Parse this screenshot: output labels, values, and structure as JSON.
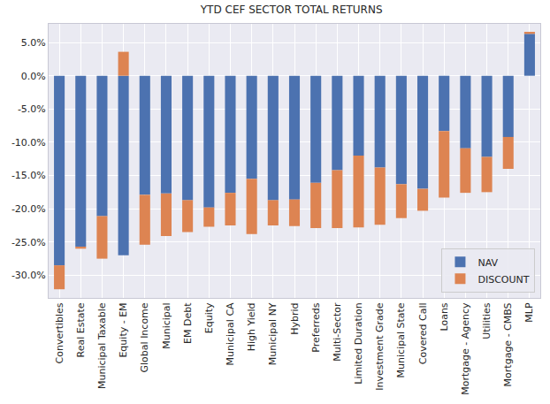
{
  "chart_data": {
    "type": "bar",
    "title": "YTD CEF SECTOR TOTAL RETURNS",
    "categories": [
      "Convertibles",
      "Real Estate",
      "Municipal Taxable",
      "Equity - EM",
      "Global Income",
      "Municipal",
      "EM Debt",
      "Equity",
      "Municipal CA",
      "High Yield",
      "Municipal NY",
      "Hybrid",
      "Preferreds",
      "Multi-Sector",
      "Limited Duration",
      "Investment Grade",
      "Municipal State",
      "Covered Call",
      "Loans",
      "Mortgage - Agency",
      "Utilities",
      "Mortgage - CMBS",
      "MLP"
    ],
    "series": [
      {
        "name": "NAV",
        "color": "#4c72b0",
        "values": [
          -28.5,
          -25.7,
          -21.1,
          -27.0,
          -17.9,
          -17.7,
          -18.7,
          -19.8,
          -17.6,
          -15.5,
          -18.7,
          -18.6,
          -16.1,
          -14.2,
          -12.0,
          -13.8,
          -16.3,
          -17.0,
          -8.3,
          -10.9,
          -12.2,
          -9.2,
          6.3
        ]
      },
      {
        "name": "DISCOUNT",
        "color": "#dd8452",
        "values": [
          -3.6,
          -0.3,
          -6.4,
          3.6,
          -7.5,
          -6.4,
          -4.8,
          -2.9,
          -4.9,
          -8.3,
          -3.8,
          -4.0,
          -6.8,
          -8.7,
          -10.8,
          -8.6,
          -5.1,
          -3.3,
          -10.0,
          -6.7,
          -5.3,
          -4.8,
          0.3
        ]
      }
    ],
    "stacked": true,
    "ylim": [
      -33.4,
      7.8
    ],
    "yticks": [
      {
        "value": -30,
        "label": "-30.0%"
      },
      {
        "value": -25,
        "label": "-25.0%"
      },
      {
        "value": -20,
        "label": "-20.0%"
      },
      {
        "value": -15,
        "label": "-15.0%"
      },
      {
        "value": -10,
        "label": "-10.0%"
      },
      {
        "value": -5,
        "label": "-5.0%"
      },
      {
        "value": 0,
        "label": "0.0%"
      },
      {
        "value": 5,
        "label": "5.0%"
      }
    ],
    "grid": true,
    "legend": "lower right"
  }
}
